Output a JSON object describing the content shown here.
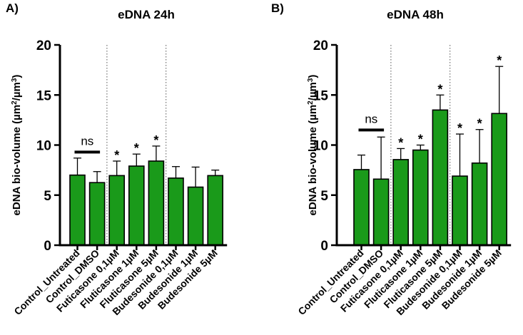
{
  "chart_data": [
    {
      "panel_label": "A)",
      "type": "bar",
      "title": "eDNA 24h",
      "ylabel": "eDNA bio-volume (µm²/µm³)",
      "ylabel_parts": [
        "eDNA bio-volume (",
        "µm",
        "2",
        "/",
        "µm",
        "3",
        ")"
      ],
      "xlabel": "",
      "ylim": [
        0,
        20
      ],
      "yticks": [
        0,
        5,
        10,
        15,
        20
      ],
      "categories": [
        "Control_Untreated",
        "Control_DMSO",
        "Futicasone 0,1µM",
        "Fluticasone 1µM",
        "Fluticasone 5µM",
        "Budesonide 0,1µM",
        "Budesonide 1µM",
        "Budesonide 5µM"
      ],
      "values": [
        7.0,
        6.25,
        6.95,
        7.9,
        8.4,
        6.7,
        5.8,
        6.95
      ],
      "errors": [
        1.7,
        1.1,
        1.45,
        1.2,
        1.5,
        1.15,
        2.0,
        0.55
      ],
      "significance": [
        "",
        "",
        "*",
        "*",
        "*",
        "",
        "",
        ""
      ],
      "ns_annotation": {
        "text": "ns",
        "y": 9.3
      },
      "group_separators_after_index": [
        1,
        4
      ],
      "bar_color": "#1a9a1a"
    },
    {
      "panel_label": "B)",
      "type": "bar",
      "title": "eDNA 48h",
      "ylabel": "eDNA bio-volume (µm²/µm³)",
      "ylabel_parts": [
        "eDNA bio-volume (",
        "µm",
        "2",
        "/",
        "µm",
        "3",
        ")"
      ],
      "xlabel": "",
      "ylim": [
        0,
        20
      ],
      "yticks": [
        0,
        5,
        10,
        15,
        20
      ],
      "categories": [
        "Control_Untreated",
        "Control_DMSO",
        "Futicasone 0,1µM",
        "Fluticasone 1µM",
        "Fluticasone 5µM",
        "Budesonide 0,1µM",
        "Budesonide 1µM",
        "Budesonide 5µM"
      ],
      "values": [
        7.55,
        6.6,
        8.55,
        9.5,
        13.5,
        6.9,
        8.2,
        13.15
      ],
      "errors": [
        1.45,
        4.2,
        1.1,
        0.5,
        1.5,
        4.2,
        3.35,
        4.7
      ],
      "significance": [
        "",
        "",
        "*",
        "*",
        "*",
        "*",
        "*",
        "*"
      ],
      "ns_annotation": {
        "text": "ns",
        "y": 11.5
      },
      "group_separators_after_index": [
        1,
        4
      ],
      "bar_color": "#1a9a1a"
    }
  ]
}
